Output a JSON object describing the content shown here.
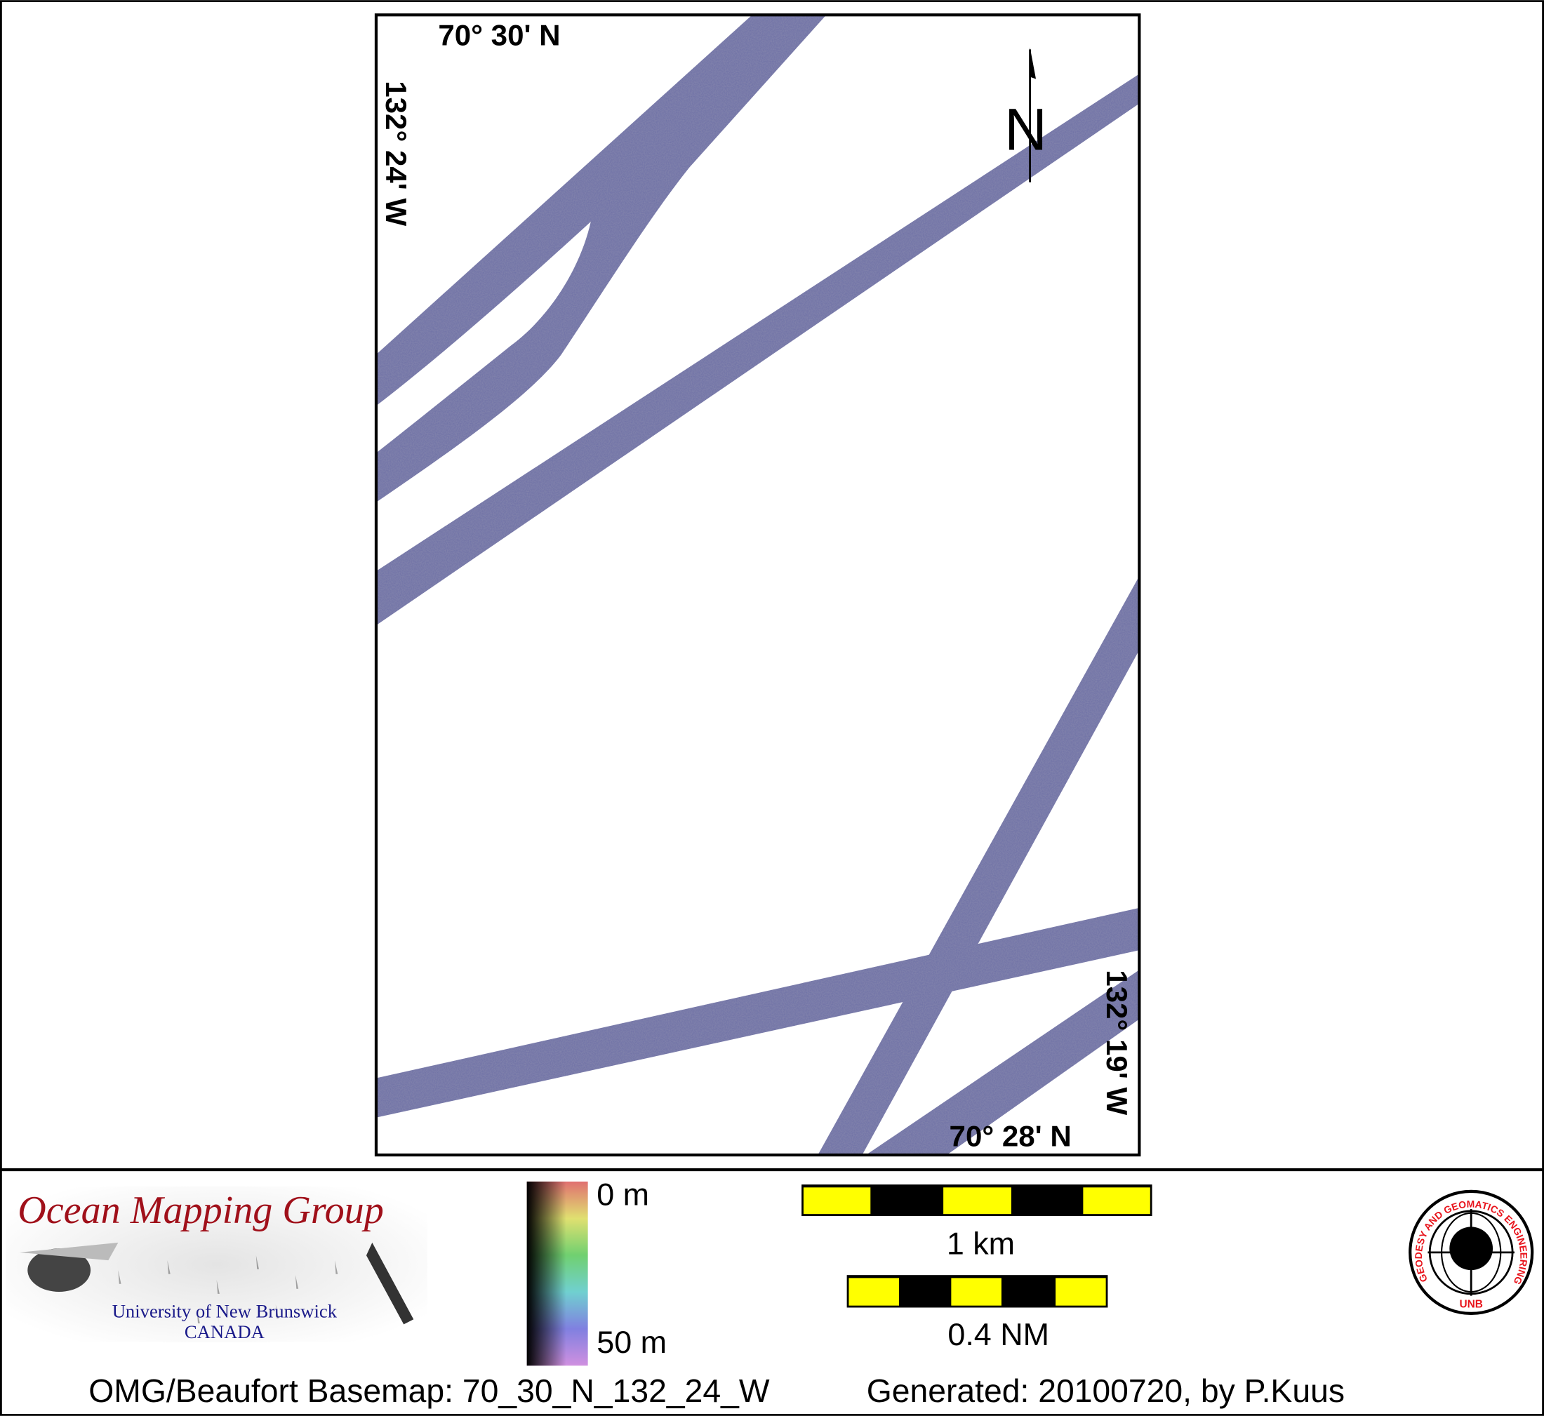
{
  "map": {
    "lat_top": "70° 30' N",
    "lat_bottom": "70° 28' N",
    "lon_left": "132° 24' W",
    "lon_right": "132° 19' W",
    "north_label": "N",
    "swath_color": "#6d6fa6"
  },
  "legend": {
    "logo": {
      "title": "Ocean Mapping Group",
      "line1": "University of New Brunswick",
      "line2": "CANADA"
    },
    "colorbar": {
      "top_label": "0 m",
      "bottom_label": "50 m"
    },
    "scalebars": [
      {
        "label": "1 km",
        "colors": [
          "#ffff00",
          "#000000"
        ]
      },
      {
        "label": "0.4 NM",
        "colors": [
          "#ffff00",
          "#000000"
        ]
      }
    ],
    "seal": {
      "text": "GEODESY AND GEOMATICS ENGINEERING",
      "bottom": "UNB",
      "color": "#e8141c"
    }
  },
  "footer": {
    "basemap": "OMG/Beaufort Basemap: 70_30_N_132_24_W",
    "generated": "Generated: 20100720, by P.Kuus"
  }
}
